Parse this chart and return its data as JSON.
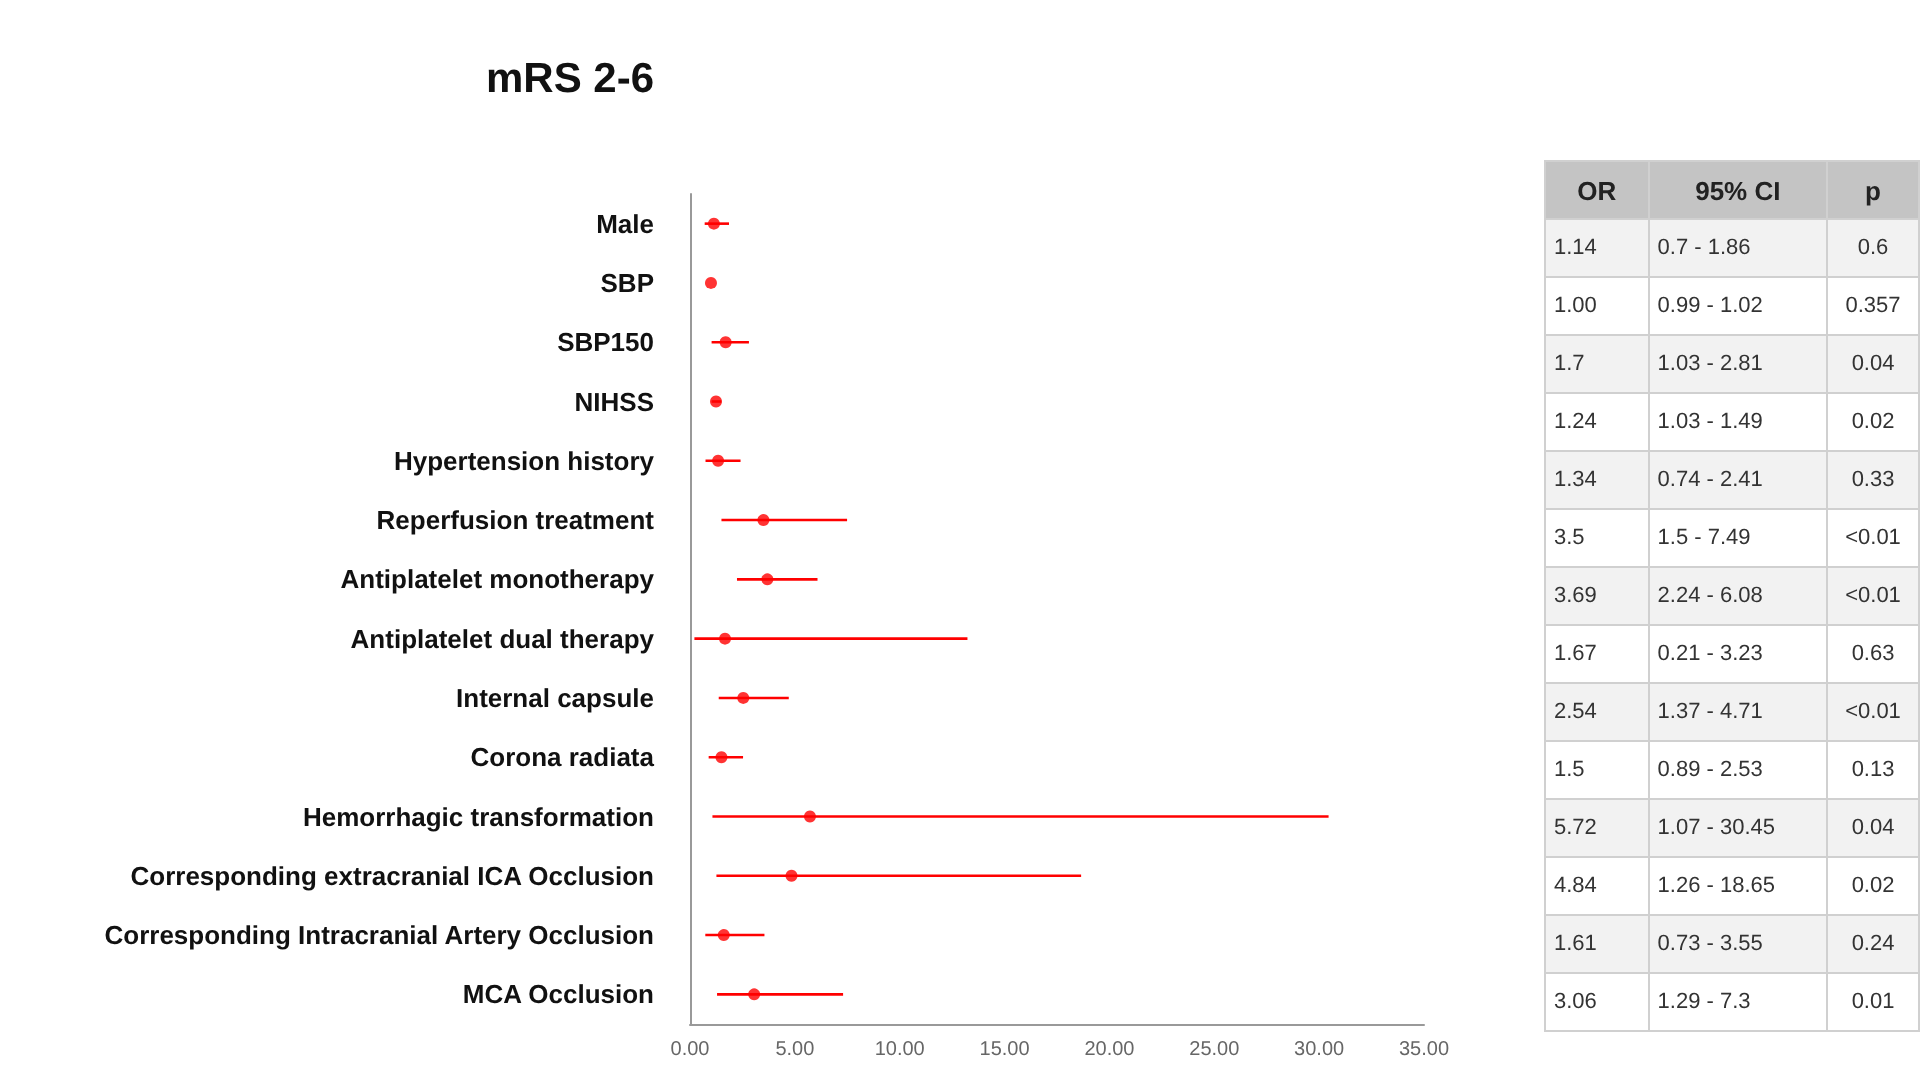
{
  "chart_data": [
    {
      "type": "scatter",
      "title": "mRS 2-6",
      "orientation": "horizontal",
      "marker": "circle",
      "grid": false,
      "color": "#ff0000",
      "categories": [
        "Male",
        "SBP",
        "SBP150",
        "NIHSS",
        "Hypertension history",
        "Reperfusion treatment",
        "Antiplatelet monotherapy",
        "Antiplatelet dual therapy",
        "Internal capsule",
        "Corona radiata",
        "Hemorrhagic transformation",
        "Corresponding extracranial ICA Occlusion",
        "Corresponding Intracranial Artery Occlusion",
        "MCA Occlusion"
      ],
      "values": [
        1.14,
        1.0,
        1.7,
        1.24,
        1.34,
        3.5,
        3.69,
        1.67,
        2.54,
        1.5,
        5.72,
        4.84,
        1.61,
        3.06
      ],
      "errors": [
        [
          0.7,
          1.86
        ],
        null,
        [
          1.03,
          2.81
        ],
        [
          1.03,
          1.49
        ],
        [
          0.74,
          2.41
        ],
        [
          1.5,
          7.49
        ],
        [
          2.24,
          6.08
        ],
        [
          0.21,
          13.23
        ],
        [
          1.37,
          4.71
        ],
        [
          0.89,
          2.53
        ],
        [
          1.07,
          30.45
        ],
        [
          1.26,
          18.65
        ],
        [
          0.73,
          3.55
        ],
        [
          1.29,
          7.3
        ]
      ],
      "xlim": [
        0,
        35
      ],
      "xticks": [
        {
          "value": 0,
          "label": "0.00"
        },
        {
          "value": 5,
          "label": "5.00"
        },
        {
          "value": 10,
          "label": "10.00"
        },
        {
          "value": 15,
          "label": "15.00"
        },
        {
          "value": 20,
          "label": "20.00"
        },
        {
          "value": 25,
          "label": "25.00"
        },
        {
          "value": 30,
          "label": "30.00"
        },
        {
          "value": 35,
          "label": "35.00"
        }
      ]
    },
    {
      "type": "other",
      "annotations": [
        "OR",
        "95% CI",
        "p",
        "1.14",
        "0.7 - 1.86",
        "0.6",
        "1.00",
        "0.99 - 1.02",
        "0.357",
        "1.7",
        "1.03 - 2.81",
        "0.04",
        "1.24",
        "1.03 - 1.49",
        "0.02",
        "1.34",
        "0.74 - 2.41",
        "0.33",
        "3.5",
        "1.5 - 7.49",
        "<0.01",
        "3.69",
        "2.24 - 6.08",
        "<0.01",
        "1.67",
        "0.21 - 3.23",
        "0.63",
        "2.54",
        "1.37 - 4.71",
        "<0.01",
        "1.5",
        "0.89 - 2.53",
        "0.13",
        "5.72",
        "1.07 - 30.45",
        "0.04",
        "4.84",
        "1.26 - 18.65",
        "0.02",
        "1.61",
        "0.73 - 3.55",
        "0.24",
        "3.06",
        "1.29 - 7.3",
        "0.01"
      ]
    }
  ]
}
